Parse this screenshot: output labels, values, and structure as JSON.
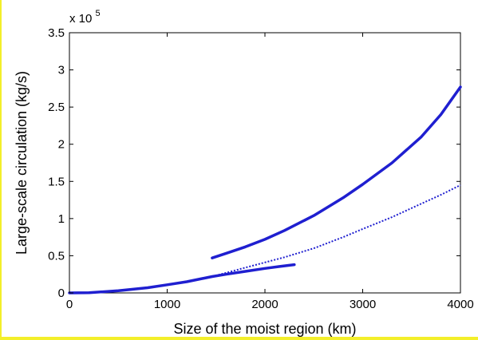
{
  "chart_data": {
    "type": "line",
    "title": "",
    "xlabel": "Size of the moist region (km)",
    "ylabel": "Large-scale circulation (kg/s)",
    "y_multiplier_label": "x 10",
    "y_multiplier_exponent": "5",
    "xlim": [
      0,
      4000
    ],
    "ylim": [
      0,
      3.5
    ],
    "x_ticks": [
      0,
      1000,
      2000,
      3000,
      4000
    ],
    "x_tick_labels": [
      "0",
      "1000",
      "2000",
      "3000",
      "4000"
    ],
    "y_ticks": [
      0,
      0.5,
      1,
      1.5,
      2,
      2.5,
      3,
      3.5
    ],
    "y_tick_labels": [
      "0",
      "0.5",
      "1",
      "1.5",
      "2",
      "2.5",
      "3",
      "3.5"
    ],
    "grid": false,
    "legend": "none",
    "color": "#1f1fd0",
    "series": [
      {
        "style": "solid",
        "x": [
          0,
          200,
          500,
          800,
          1000,
          1200,
          1460,
          1600,
          1800,
          2000,
          2150,
          2300
        ],
        "y": [
          0,
          0.002,
          0.03,
          0.07,
          0.11,
          0.15,
          0.22,
          0.25,
          0.29,
          0.33,
          0.355,
          0.38
        ]
      },
      {
        "style": "solid",
        "x": [
          1460,
          1600,
          1800,
          2000,
          2200,
          2500,
          2800,
          3000,
          3300,
          3600,
          3800,
          4000
        ],
        "y": [
          0.47,
          0.53,
          0.62,
          0.72,
          0.84,
          1.04,
          1.28,
          1.46,
          1.75,
          2.1,
          2.4,
          2.77
        ]
      },
      {
        "style": "dotted",
        "x": [
          1460,
          1800,
          2000,
          2200,
          2500,
          2800,
          3000,
          3300,
          3600,
          3800,
          4000
        ],
        "y": [
          0.22,
          0.34,
          0.41,
          0.48,
          0.6,
          0.75,
          0.86,
          1.02,
          1.2,
          1.32,
          1.45
        ]
      }
    ]
  }
}
